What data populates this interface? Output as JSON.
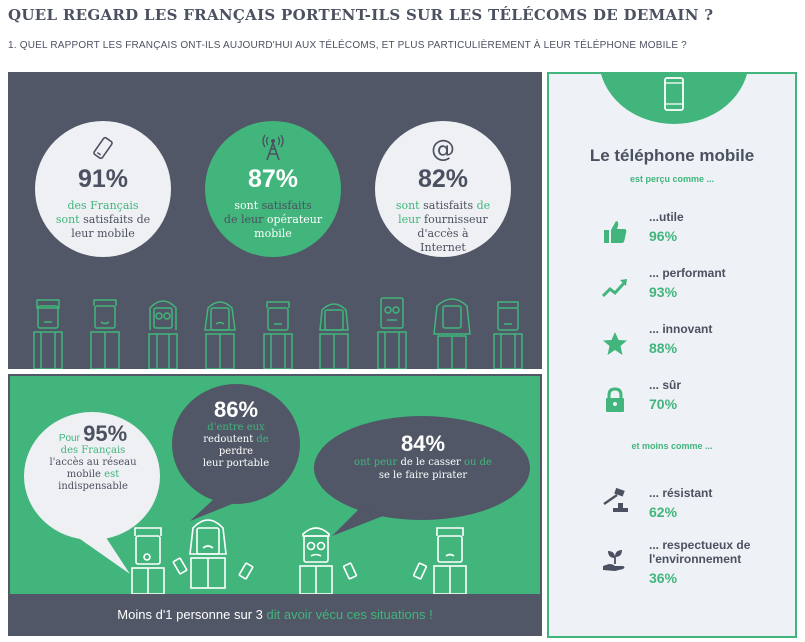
{
  "title": "QUEL REGARD LES FRANÇAIS PORTENT-ILS SUR LES TÉLÉCOMS DE DEMAIN ?",
  "subtitle": "1. QUEL RAPPORT LES FRANÇAIS ONT-ILS AUJOURD'HUI AUX TÉLÉCOMS, ET PLUS PARTICULIÈREMENT À LEUR TÉLÉPHONE MOBILE ?",
  "circles": [
    {
      "icon": "mobile-phone-icon",
      "pct": "91%",
      "t1": "des Français",
      "t2": "sont",
      "t3": "satisfaits de",
      "t4": "leur mobile"
    },
    {
      "icon": "antenna-icon",
      "pct": "87%",
      "t1": "sont",
      "t2": "satisfaits",
      "t3": "de leur",
      "t4": "opérateur",
      "t5": "mobile"
    },
    {
      "icon": "at-sign-icon",
      "pct": "82%",
      "t1": "sont",
      "t2": "satisfaits",
      "t3": "de",
      "t4": "leur",
      "t5": "fournisseur",
      "t6": "d'accès à",
      "t7": "Internet"
    }
  ],
  "bubbles": {
    "b1": {
      "pre": "Pour",
      "pct": "95%",
      "l1": "des Français",
      "l2": "l'accès au réseau",
      "l3a": "mobile",
      "l3b": "est",
      "l4": "indispensable"
    },
    "b2": {
      "pct": "86%",
      "l1": "d'entre eux",
      "l2a": "redoutent",
      "l2b": "de",
      "l3": "perdre",
      "l4": "leur portable"
    },
    "b3": {
      "pct": "84%",
      "l1a": "ont peur",
      "l1b": "de",
      "l1c": "le casser",
      "l1d": "ou de",
      "l2": "se le faire pirater"
    }
  },
  "footer": {
    "part1": "Moins d'1 personne sur 3",
    "part2": "dit avoir vécu ces situations !"
  },
  "right": {
    "title": "Le téléphone mobile",
    "sub1": "est perçu comme ...",
    "sub2": "et moins comme ...",
    "items": [
      {
        "icon": "thumbs-up-icon",
        "label": "...utile",
        "value": "96%"
      },
      {
        "icon": "trend-up-icon",
        "label": "... performant",
        "value": "93%"
      },
      {
        "icon": "star-icon",
        "label": "... innovant",
        "value": "88%"
      },
      {
        "icon": "padlock-icon",
        "label": "... sûr",
        "value": "70%"
      },
      {
        "icon": "hammer-icon",
        "label": "... résistant",
        "value": "62%"
      },
      {
        "icon": "plant-hand-icon",
        "label": "... respectueux de l'environnement",
        "value": "36%"
      }
    ]
  },
  "colors": {
    "green": "#41b57c",
    "dark": "#515766",
    "light": "#eef2f6"
  }
}
